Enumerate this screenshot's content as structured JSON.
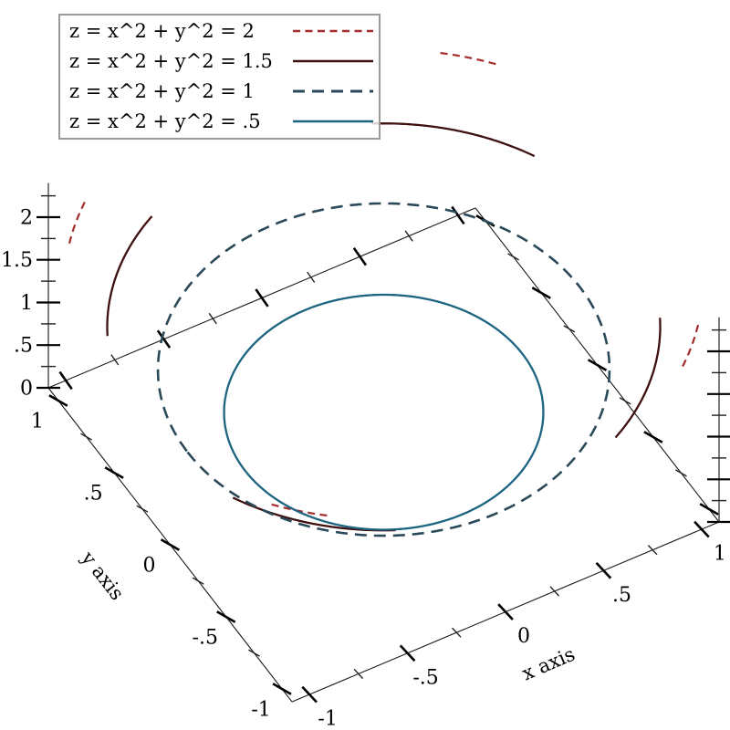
{
  "figure": {
    "background": "#ffffff",
    "description": "3D plot of circular isolines of z = x^2 + y^2 drawn at their z heights inside a wireframe box"
  },
  "chart_data": {
    "type": "line",
    "plot_kind": "3d-isolines",
    "function": "z = x^2 + y^2",
    "x_axis": {
      "title": "x axis",
      "range": [
        -1.09,
        1.09
      ],
      "major_ticks": [
        -1,
        -0.5,
        0,
        0.5,
        1
      ],
      "major_tick_labels": [
        "-1",
        "-.5",
        "0",
        ".5",
        "1"
      ],
      "minor_ticks": [
        -0.75,
        -0.25,
        0.25,
        0.75
      ]
    },
    "y_axis": {
      "title": "y axis",
      "range": [
        -1.09,
        1.09
      ],
      "major_ticks": [
        1,
        0.5,
        0,
        -0.5,
        -1
      ],
      "major_tick_labels": [
        "1",
        ".5",
        "0",
        "-.5",
        "-1"
      ],
      "minor_ticks": [
        0.75,
        0.25,
        -0.25,
        -0.75
      ]
    },
    "z_axis": {
      "title": "",
      "range": [
        0,
        2.4
      ],
      "major_ticks": [
        0,
        0.5,
        1,
        1.5,
        2
      ],
      "major_tick_labels": [
        "0",
        ".5",
        "1",
        "1.5",
        "2"
      ],
      "minor_ticks": [
        0.25,
        0.75,
        1.25,
        1.75,
        2.25
      ]
    },
    "series": [
      {
        "label": "z = x^2 + y^2 = 2",
        "z": 2,
        "radius": 1.4142,
        "color": "#a32c2c",
        "line_style": "short-dash",
        "width": 2.2
      },
      {
        "label": "z = x^2 + y^2 = 1.5",
        "z": 1.5,
        "radius": 1.2247,
        "color": "#3f1010",
        "line_style": "solid",
        "width": 2.3
      },
      {
        "label": "z = x^2 + y^2 = 1",
        "z": 1,
        "radius": 1.0,
        "color": "#2a4959",
        "line_style": "long-dash",
        "width": 2.6
      },
      {
        "label": "z = x^2 + y^2 = .5",
        "z": 0.5,
        "radius": 0.7071,
        "color": "#1d6480",
        "line_style": "solid",
        "width": 2.3
      }
    ],
    "legend": {
      "position": "top-left"
    }
  }
}
